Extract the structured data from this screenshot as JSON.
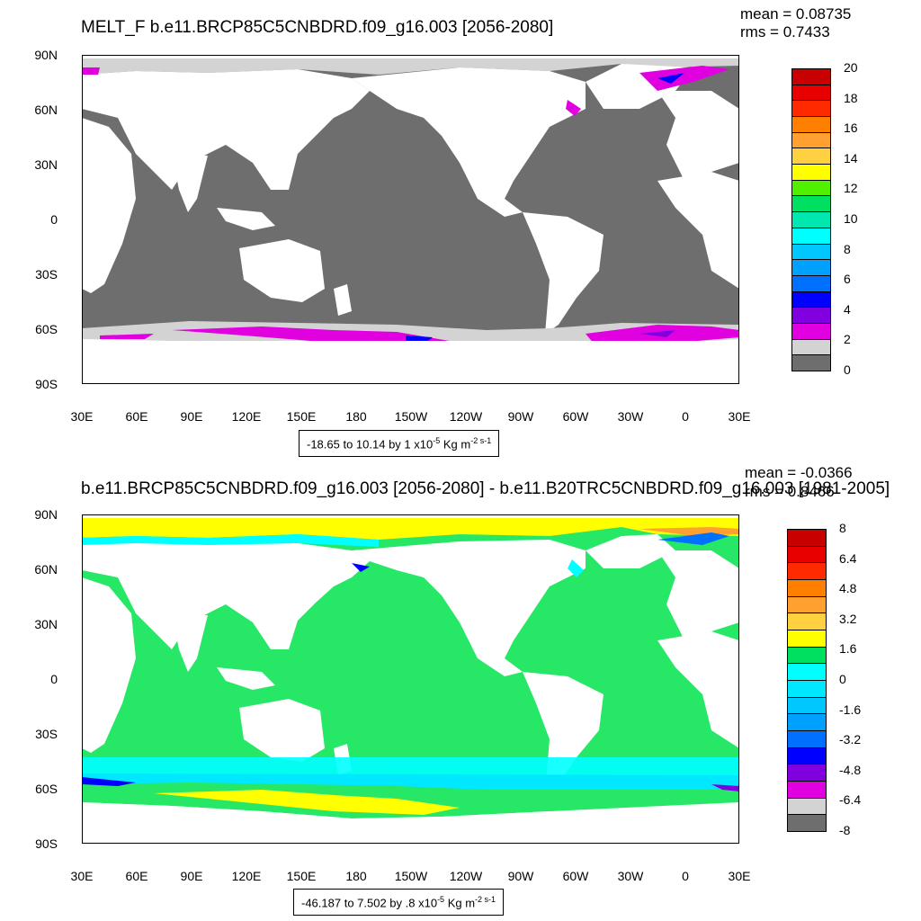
{
  "panel1": {
    "title": "MELT_F b.e11.BRCP85C5CNBDRD.f09_g16.003 [2056-2080]",
    "mean": "mean = 0.08735",
    "rms": "rms = 0.7433",
    "range_text": "-18.65 to 10.14 by 1 x10",
    "units_exp": "-5",
    "units": "Kg m",
    "units_exp2": "-2 s-1",
    "colorbar_labels": [
      "20",
      "18",
      "16",
      "14",
      "12",
      "10",
      "8",
      "6",
      "4",
      "2",
      "0"
    ],
    "colorbar_colors": [
      "#c80000",
      "#e80000",
      "#ff2a00",
      "#ff8000",
      "#ffa030",
      "#ffd040",
      "#ffff00",
      "#50f000",
      "#00e060",
      "#00e8b0",
      "#00ffff",
      "#00c8ff",
      "#00a0ff",
      "#0070ff",
      "#0000ff",
      "#8000e0",
      "#e000e0",
      "#d3d3d3",
      "#6e6e6e"
    ]
  },
  "panel2": {
    "title": "b.e11.BRCP85C5CNBDRD.f09_g16.003 [2056-2080] - b.e11.B20TRC5CNBDRD.f09_g16.003 [1981-2005]",
    "mean": "mean = -0.0366",
    "rms": "rms = 0.8466",
    "range_text": "-46.187 to 7.502 by .8 x10",
    "units_exp": "-5",
    "units": "Kg m",
    "units_exp2": "-2 s-1",
    "colorbar_labels": [
      "8",
      "6.4",
      "4.8",
      "3.2",
      "1.6",
      "0",
      "-1.6",
      "-3.2",
      "-4.8",
      "-6.4",
      "-8"
    ],
    "colorbar_colors": [
      "#c80000",
      "#e80000",
      "#ff2a00",
      "#ff8000",
      "#ffa030",
      "#ffd040",
      "#ffff00",
      "#00e060",
      "#00ffff",
      "#00e8ff",
      "#00c8ff",
      "#00a0ff",
      "#0070ff",
      "#0000ff",
      "#8000e0",
      "#e000e0",
      "#d3d3d3",
      "#6e6e6e"
    ]
  },
  "lat_labels": [
    "90N",
    "60N",
    "30N",
    "0",
    "30S",
    "60S",
    "90S"
  ],
  "lon_labels": [
    "30E",
    "60E",
    "90E",
    "120E",
    "150E",
    "180",
    "150W",
    "120W",
    "90W",
    "60W",
    "30W",
    "0",
    "30E"
  ],
  "colors": {
    "ocean_gray": "#6e6e6e",
    "ocean_green": "#27e866",
    "land": "#ffffff",
    "sea_ice_light": "#d3d3d3",
    "magenta": "#e000e0",
    "cyan": "#00ffff",
    "yellow": "#ffff00"
  }
}
